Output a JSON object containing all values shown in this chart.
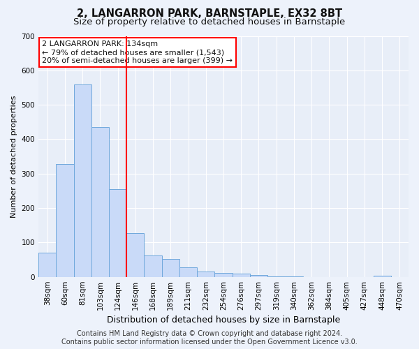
{
  "title": "2, LANGARRON PARK, BARNSTAPLE, EX32 8BT",
  "subtitle": "Size of property relative to detached houses in Barnstaple",
  "xlabel": "Distribution of detached houses by size in Barnstaple",
  "ylabel": "Number of detached properties",
  "categories": [
    "38sqm",
    "60sqm",
    "81sqm",
    "103sqm",
    "124sqm",
    "146sqm",
    "168sqm",
    "189sqm",
    "211sqm",
    "232sqm",
    "254sqm",
    "276sqm",
    "297sqm",
    "319sqm",
    "340sqm",
    "362sqm",
    "384sqm",
    "405sqm",
    "427sqm",
    "448sqm",
    "470sqm"
  ],
  "values": [
    70,
    327,
    560,
    435,
    255,
    128,
    63,
    52,
    28,
    15,
    12,
    10,
    5,
    1,
    1,
    0,
    0,
    0,
    0,
    4,
    0
  ],
  "bar_color": "#c9daf8",
  "bar_edge_color": "#6fa8dc",
  "red_line_x": 4.5,
  "annotation_line1": "2 LANGARRON PARK: 134sqm",
  "annotation_line2": "← 79% of detached houses are smaller (1,543)",
  "annotation_line3": "20% of semi-detached houses are larger (399) →",
  "ylim": [
    0,
    700
  ],
  "yticks": [
    0,
    100,
    200,
    300,
    400,
    500,
    600,
    700
  ],
  "footer": "Contains HM Land Registry data © Crown copyright and database right 2024.\nContains public sector information licensed under the Open Government Licence v3.0.",
  "bg_color": "#edf2fb",
  "plot_bg_color": "#e8eef8",
  "grid_color": "#ffffff",
  "title_fontsize": 10.5,
  "subtitle_fontsize": 9.5,
  "annotation_fontsize": 8,
  "footer_fontsize": 7,
  "ylabel_fontsize": 8,
  "xlabel_fontsize": 9,
  "tick_fontsize": 7.5
}
